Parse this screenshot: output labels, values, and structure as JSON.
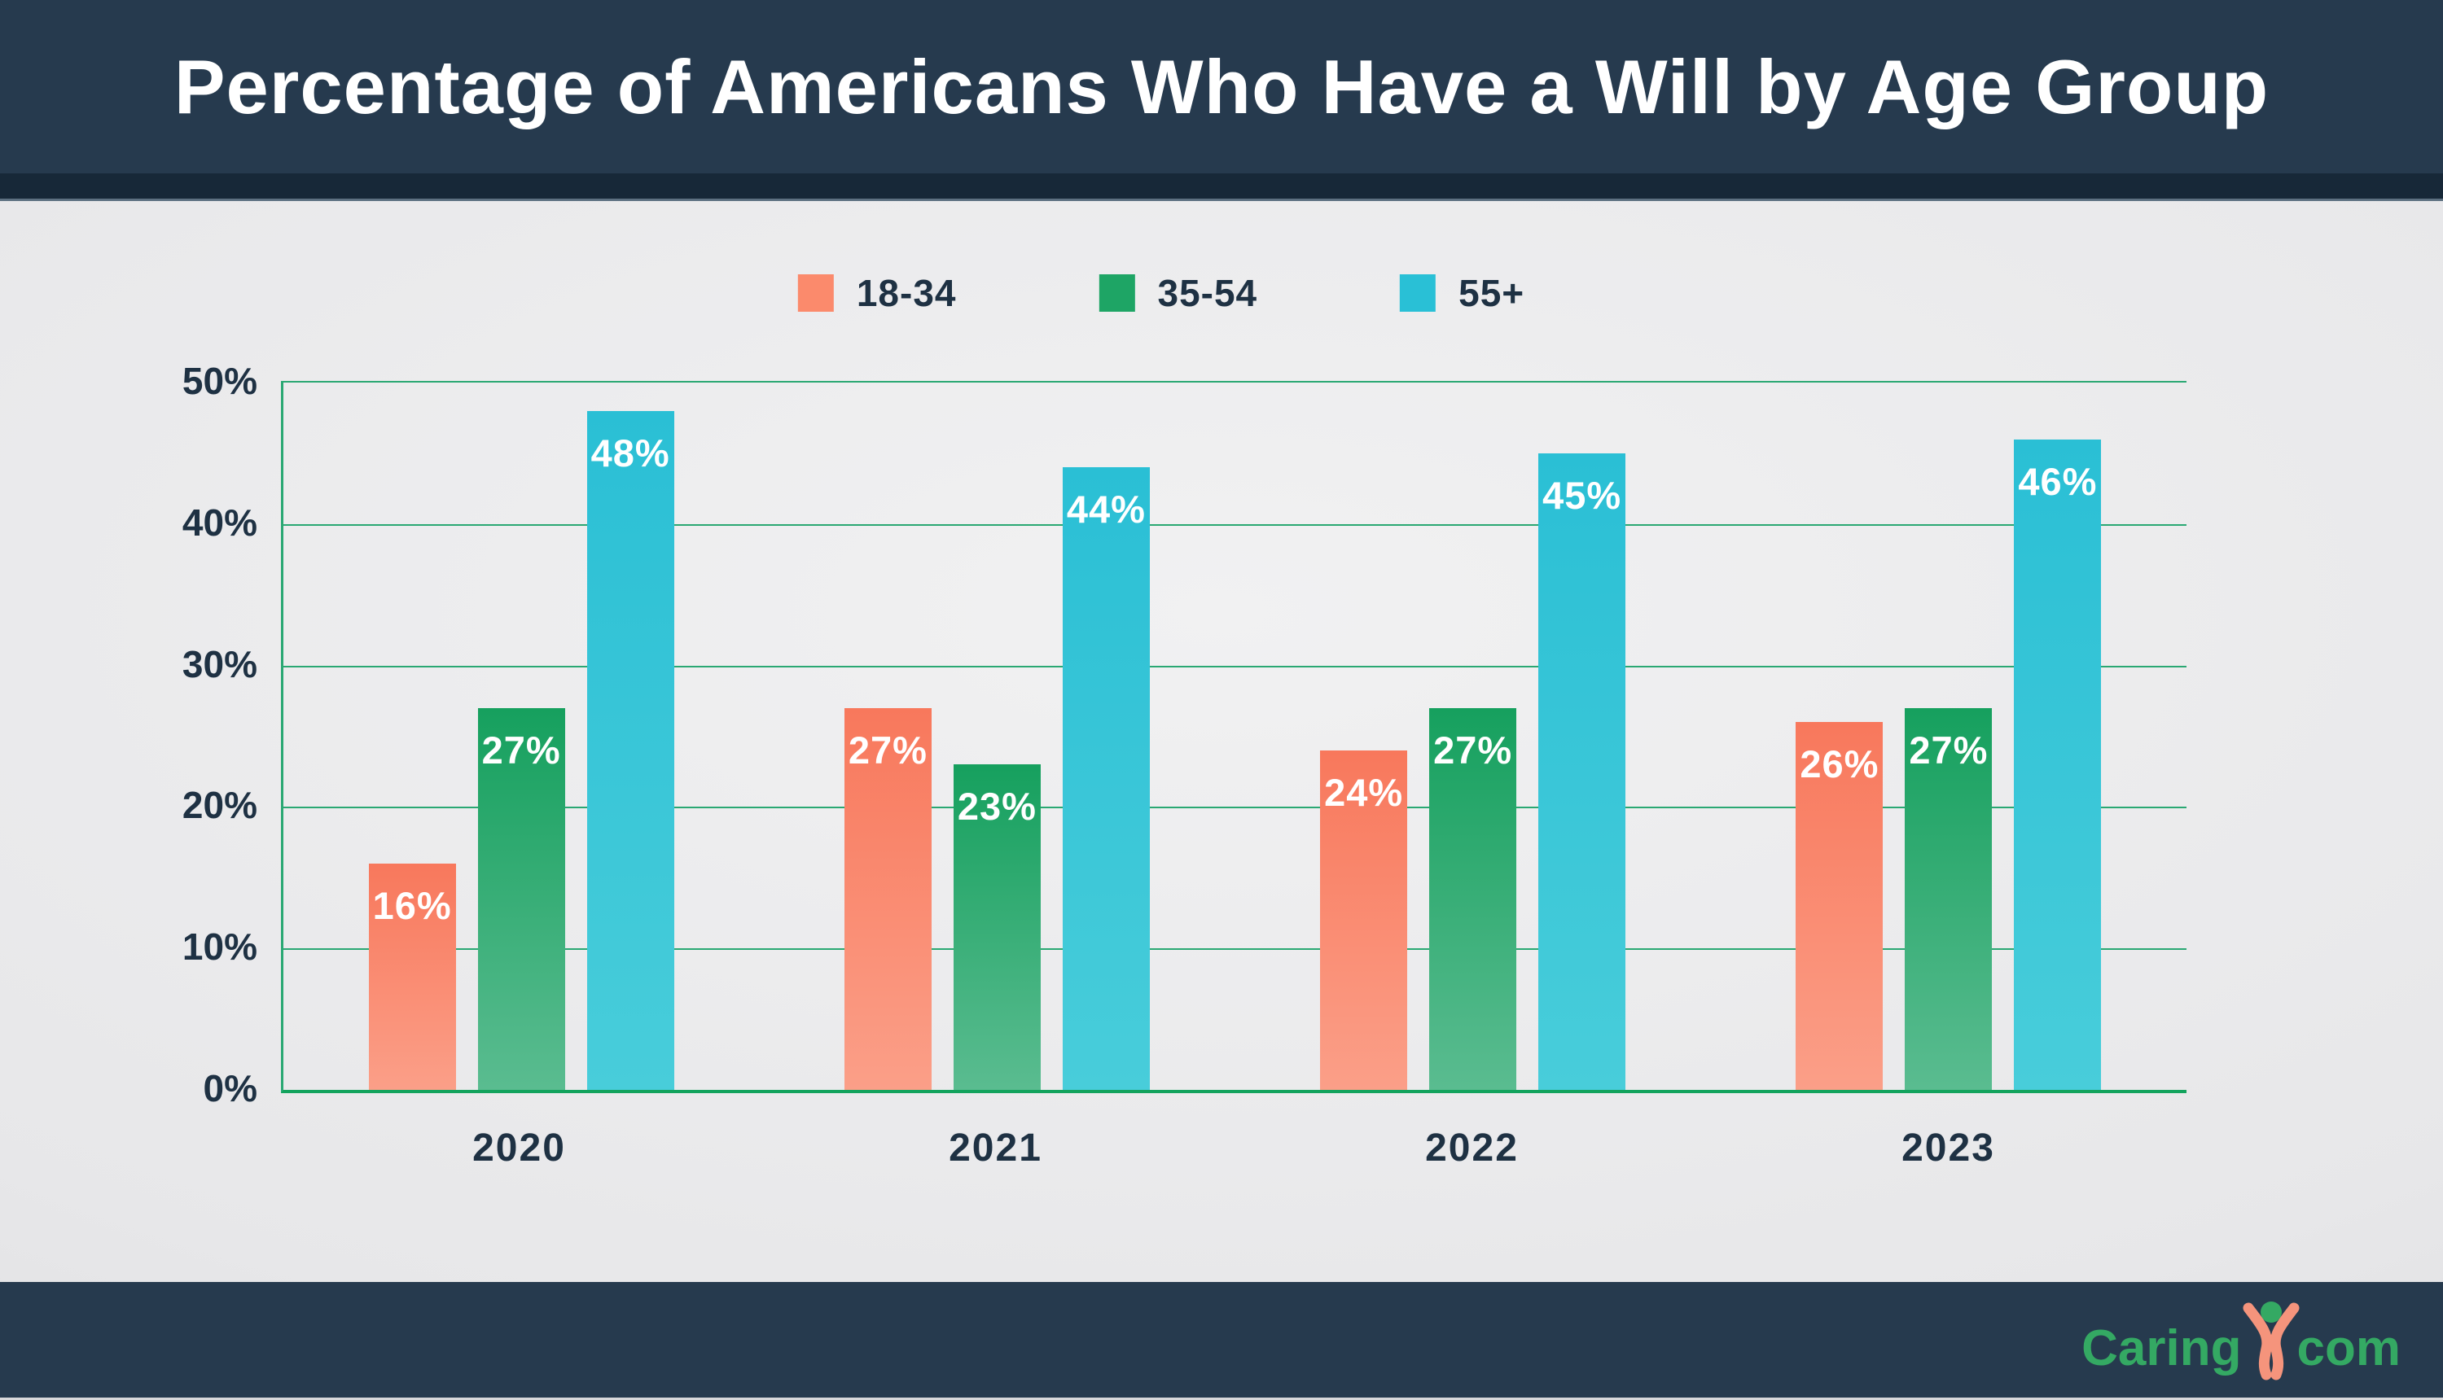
{
  "header": {
    "title": "Percentage of Americans Who Have a Will by Age Group"
  },
  "legend": [
    {
      "label": "18-34",
      "color": "#fb8a6c"
    },
    {
      "label": "35-54",
      "color": "#1ea565"
    },
    {
      "label": "55+",
      "color": "#29c0d6"
    }
  ],
  "chart_data": {
    "type": "bar",
    "title": "Percentage of Americans Who Have a Will by Age Group",
    "categories": [
      "2020",
      "2021",
      "2022",
      "2023"
    ],
    "series": [
      {
        "name": "18-34",
        "values": [
          16,
          27,
          24,
          26
        ],
        "color_top": "#f8785c",
        "color_bottom": "#fb9f88"
      },
      {
        "name": "35-54",
        "values": [
          27,
          23,
          27,
          27
        ],
        "color_top": "#16a05e",
        "color_bottom": "#5abc90"
      },
      {
        "name": "55+",
        "values": [
          48,
          44,
          45,
          46
        ],
        "color_top": "#2abfd5",
        "color_bottom": "#48cdda"
      }
    ],
    "y_ticks": [
      "50%",
      "40%",
      "30%",
      "20%",
      "10%",
      "0%"
    ],
    "ylim": [
      0,
      50
    ],
    "grid": true,
    "grid_color": "#2aa873",
    "axis_color": "#13a35d",
    "legend_position": "top",
    "value_label_format": "{v}%",
    "xlabel": "",
    "ylabel": ""
  },
  "footer": {
    "brand_prefix": "Caring",
    "brand_suffix": "com",
    "brand_color": "#34a963",
    "icon_color": "#f5947c"
  },
  "theme": {
    "header_background": "#263a4e",
    "header_strip": "#172838",
    "text_dark": "#1e3143"
  }
}
